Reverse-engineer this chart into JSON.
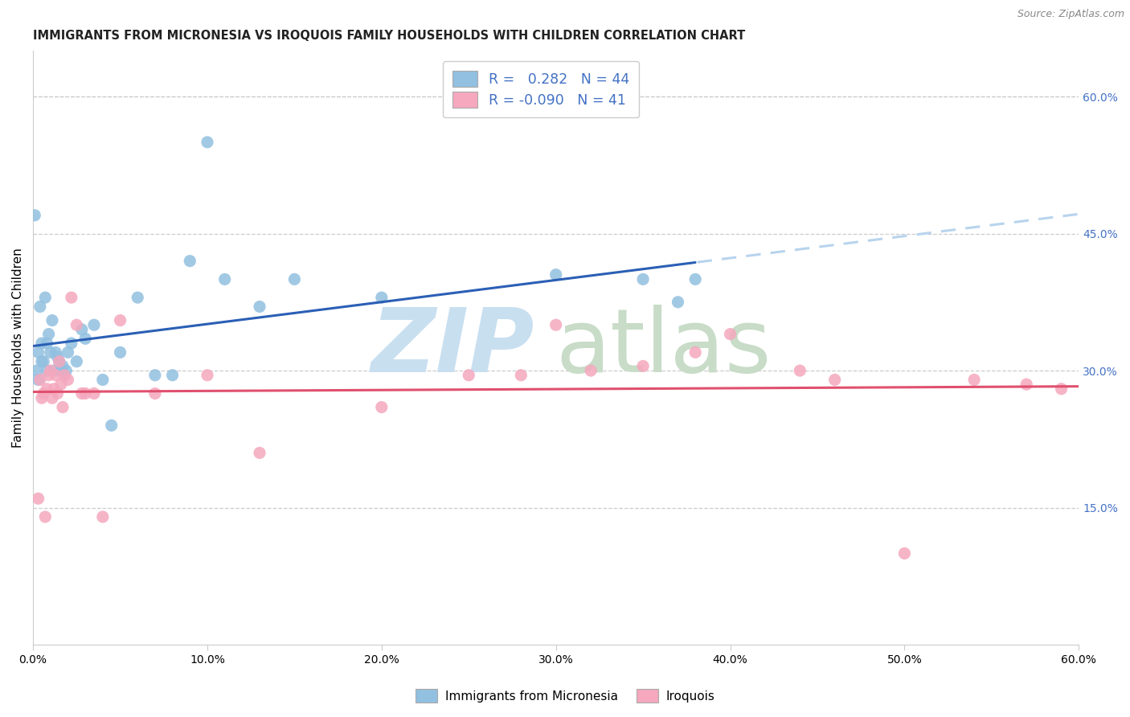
{
  "title": "IMMIGRANTS FROM MICRONESIA VS IROQUOIS FAMILY HOUSEHOLDS WITH CHILDREN CORRELATION CHART",
  "source": "Source: ZipAtlas.com",
  "ylabel": "Family Households with Children",
  "blue_label": "Immigrants from Micronesia",
  "pink_label": "Iroquois",
  "blue_r": "0.282",
  "blue_n": "44",
  "pink_r": "-0.090",
  "pink_n": "41",
  "xlim": [
    0.0,
    0.6
  ],
  "ylim": [
    0.0,
    0.65
  ],
  "xtick_vals": [
    0.0,
    0.1,
    0.2,
    0.3,
    0.4,
    0.5,
    0.6
  ],
  "ytick_right_vals": [
    0.15,
    0.3,
    0.45,
    0.6
  ],
  "blue_x": [
    0.001,
    0.002,
    0.003,
    0.003,
    0.004,
    0.005,
    0.005,
    0.006,
    0.007,
    0.008,
    0.008,
    0.009,
    0.01,
    0.011,
    0.012,
    0.013,
    0.014,
    0.015,
    0.016,
    0.017,
    0.018,
    0.019,
    0.02,
    0.022,
    0.025,
    0.028,
    0.03,
    0.035,
    0.04,
    0.045,
    0.05,
    0.06,
    0.07,
    0.08,
    0.09,
    0.1,
    0.11,
    0.13,
    0.15,
    0.2,
    0.3,
    0.35,
    0.37,
    0.38
  ],
  "blue_y": [
    0.47,
    0.3,
    0.29,
    0.32,
    0.37,
    0.31,
    0.33,
    0.31,
    0.38,
    0.3,
    0.33,
    0.34,
    0.32,
    0.355,
    0.3,
    0.32,
    0.315,
    0.31,
    0.3,
    0.305,
    0.295,
    0.3,
    0.32,
    0.33,
    0.31,
    0.345,
    0.335,
    0.35,
    0.29,
    0.24,
    0.32,
    0.38,
    0.295,
    0.295,
    0.42,
    0.55,
    0.4,
    0.37,
    0.4,
    0.38,
    0.405,
    0.4,
    0.375,
    0.4
  ],
  "pink_x": [
    0.003,
    0.004,
    0.005,
    0.006,
    0.007,
    0.008,
    0.009,
    0.01,
    0.011,
    0.012,
    0.013,
    0.014,
    0.015,
    0.016,
    0.017,
    0.018,
    0.02,
    0.022,
    0.025,
    0.028,
    0.03,
    0.035,
    0.04,
    0.05,
    0.07,
    0.1,
    0.13,
    0.2,
    0.25,
    0.28,
    0.3,
    0.32,
    0.35,
    0.38,
    0.4,
    0.44,
    0.46,
    0.5,
    0.54,
    0.57,
    0.59
  ],
  "pink_y": [
    0.16,
    0.29,
    0.27,
    0.275,
    0.14,
    0.28,
    0.295,
    0.3,
    0.27,
    0.28,
    0.295,
    0.275,
    0.31,
    0.285,
    0.26,
    0.295,
    0.29,
    0.38,
    0.35,
    0.275,
    0.275,
    0.275,
    0.14,
    0.355,
    0.275,
    0.295,
    0.21,
    0.26,
    0.295,
    0.295,
    0.35,
    0.3,
    0.305,
    0.32,
    0.34,
    0.3,
    0.29,
    0.1,
    0.29,
    0.285,
    0.28
  ],
  "blue_scatter_color": "#92c0e0",
  "pink_scatter_color": "#f5a8be",
  "blue_line_color": "#2b5fb5",
  "pink_line_color": "#e0506e",
  "blue_dash_color": "#b8d4ee",
  "grid_color": "#cccccc",
  "right_tick_color": "#4472c4",
  "legend_text_color": "#4472c4",
  "watermark_zip_color": "#c8dff0",
  "watermark_atlas_color": "#c8dcc8"
}
